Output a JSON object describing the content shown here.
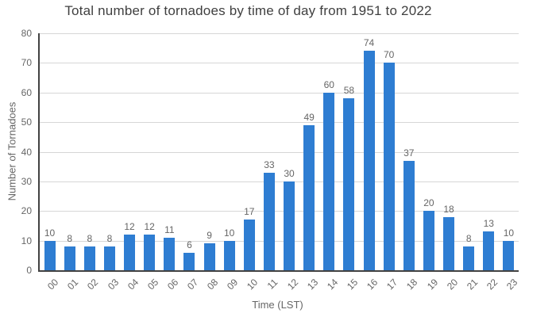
{
  "chart_data": {
    "type": "bar",
    "title": "Total number of tornadoes by time of day from 1951 to 2022",
    "xlabel": "Time (LST)",
    "ylabel": "Number of Tornadoes",
    "categories": [
      "00",
      "01",
      "02",
      "03",
      "04",
      "05",
      "06",
      "07",
      "08",
      "09",
      "10",
      "11",
      "12",
      "13",
      "14",
      "15",
      "16",
      "17",
      "18",
      "19",
      "20",
      "21",
      "22",
      "23"
    ],
    "values": [
      10,
      8,
      8,
      8,
      12,
      12,
      11,
      6,
      9,
      10,
      17,
      33,
      30,
      49,
      60,
      58,
      74,
      70,
      37,
      20,
      18,
      8,
      13,
      10
    ],
    "ylim": [
      0,
      80
    ],
    "ytick_interval": 10,
    "yticks": [
      0,
      10,
      20,
      30,
      40,
      50,
      60,
      70,
      80
    ],
    "grid": true,
    "legend": "none",
    "value_labels_shown": true
  },
  "colors": {
    "bar": "#2E7DD2",
    "grid": "#D6D6D6",
    "axis": "#424242",
    "tick_text": "#666666",
    "title_text": "#404040",
    "background": "#FFFFFF"
  }
}
